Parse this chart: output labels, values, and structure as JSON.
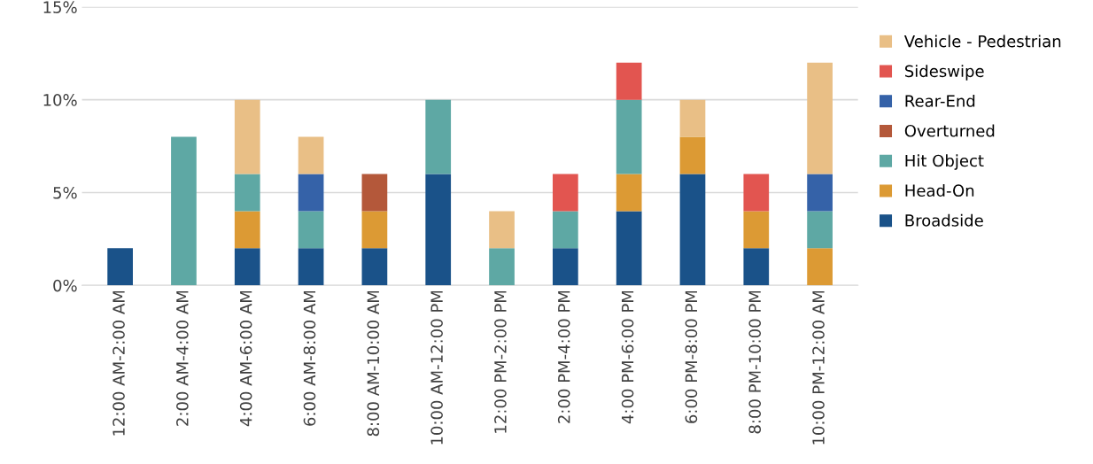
{
  "chart_data": {
    "type": "bar",
    "stacked": true,
    "categories": [
      "12:00 AM-2:00 AM",
      "2:00 AM-4:00 AM",
      "4:00 AM-6:00 AM",
      "6:00 AM-8:00 AM",
      "8:00 AM-10:00 AM",
      "10:00 AM-12:00 PM",
      "12:00 PM-2:00 PM",
      "2:00 PM-4:00 PM",
      "4:00 PM-6:00 PM",
      "6:00 PM-8:00 PM",
      "8:00 PM-10:00 PM",
      "10:00 PM-12:00 AM"
    ],
    "series": [
      {
        "name": "Broadside",
        "color": "#1a5289",
        "values": [
          2,
          0,
          2,
          2,
          2,
          6,
          0,
          2,
          4,
          6,
          2,
          0
        ]
      },
      {
        "name": "Head-On",
        "color": "#dc9a34",
        "values": [
          0,
          0,
          2,
          0,
          2,
          0,
          0,
          0,
          2,
          2,
          2,
          2
        ]
      },
      {
        "name": "Hit Object",
        "color": "#5ea8a4",
        "values": [
          0,
          8,
          2,
          2,
          0,
          4,
          2,
          2,
          4,
          0,
          0,
          2
        ]
      },
      {
        "name": "Overturned",
        "color": "#b4583a",
        "values": [
          0,
          0,
          0,
          0,
          2,
          0,
          0,
          0,
          0,
          0,
          0,
          0
        ]
      },
      {
        "name": "Rear-End",
        "color": "#3562a8",
        "values": [
          0,
          0,
          0,
          2,
          0,
          0,
          0,
          0,
          0,
          0,
          0,
          2
        ]
      },
      {
        "name": "Sideswipe",
        "color": "#e25550",
        "values": [
          0,
          0,
          0,
          0,
          0,
          0,
          0,
          2,
          2,
          0,
          2,
          0
        ]
      },
      {
        "name": "Vehicle - Pedestrian",
        "color": "#e9bf86",
        "values": [
          0,
          0,
          4,
          2,
          0,
          0,
          2,
          0,
          0,
          2,
          0,
          6
        ]
      }
    ],
    "ylim": [
      0,
      15
    ],
    "yticks": [
      {
        "value": 0,
        "label": "0%"
      },
      {
        "value": 5,
        "label": "5%"
      },
      {
        "value": 10,
        "label": "10%"
      },
      {
        "value": 15,
        "label": "15%"
      }
    ],
    "grid": "y",
    "legend": "right"
  }
}
